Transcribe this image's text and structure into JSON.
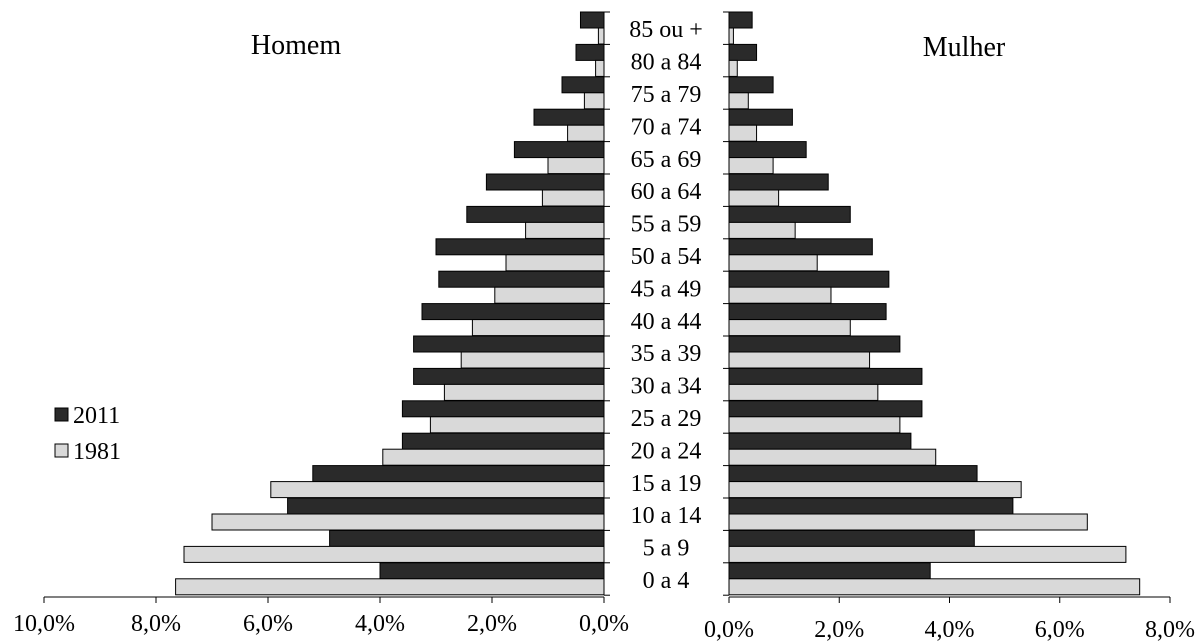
{
  "chart_data": {
    "type": "bar",
    "orientation": "horizontal",
    "chart_kind": "population-pyramid",
    "categories": [
      "0 a 4",
      "5 a 9",
      "10 a 14",
      "15 a 19",
      "20 a 24",
      "25 a 29",
      "30 a 34",
      "35 a 39",
      "40 a 44",
      "45 a 49",
      "50 a 54",
      "55 a 59",
      "60 a 64",
      "65 a 69",
      "70 a 74",
      "75 a 79",
      "80 a 84",
      "85 ou +"
    ],
    "panels": [
      {
        "label": "Homem",
        "side": "left",
        "xlim": [
          10,
          0
        ],
        "ticks": [
          "10,0%",
          "8,0%",
          "6,0%",
          "4,0%",
          "2,0%",
          "0,0%"
        ],
        "tick_values": [
          10,
          8,
          6,
          4,
          2,
          0
        ],
        "series": [
          {
            "name": "2011",
            "color": "#2a2a2a",
            "values": [
              4.0,
              4.9,
              5.65,
              5.2,
              3.6,
              3.6,
              3.4,
              3.4,
              3.25,
              2.95,
              3.0,
              2.45,
              2.1,
              1.6,
              1.25,
              0.75,
              0.5,
              0.42
            ]
          },
          {
            "name": "1981",
            "color": "#d9d9d9",
            "values": [
              7.65,
              7.5,
              7.0,
              5.95,
              3.95,
              3.1,
              2.85,
              2.55,
              2.35,
              1.95,
              1.75,
              1.4,
              1.1,
              1.0,
              0.65,
              0.35,
              0.15,
              0.1
            ]
          }
        ]
      },
      {
        "label": "Mulher",
        "side": "right",
        "xlim": [
          0,
          8
        ],
        "ticks": [
          "0,0%",
          "2,0%",
          "4,0%",
          "6,0%",
          "8,0%"
        ],
        "tick_values": [
          0,
          2,
          4,
          6,
          8
        ],
        "series": [
          {
            "name": "2011",
            "color": "#2a2a2a",
            "values": [
              3.65,
              4.45,
              5.15,
              4.5,
              3.3,
              3.5,
              3.5,
              3.1,
              2.85,
              2.9,
              2.6,
              2.2,
              1.8,
              1.4,
              1.15,
              0.8,
              0.5,
              0.42
            ]
          },
          {
            "name": "1981",
            "color": "#d9d9d9",
            "values": [
              7.45,
              7.2,
              6.5,
              5.3,
              3.75,
              3.1,
              2.7,
              2.55,
              2.2,
              1.85,
              1.6,
              1.2,
              0.9,
              0.8,
              0.5,
              0.35,
              0.15,
              0.08
            ]
          }
        ]
      }
    ],
    "legend": {
      "placement": "left-middle",
      "items": [
        {
          "name": "2011",
          "color": "#2a2a2a"
        },
        {
          "name": "1981",
          "color": "#d9d9d9"
        }
      ]
    },
    "title": "",
    "xlabel": "",
    "ylabel": "",
    "grid": false
  }
}
